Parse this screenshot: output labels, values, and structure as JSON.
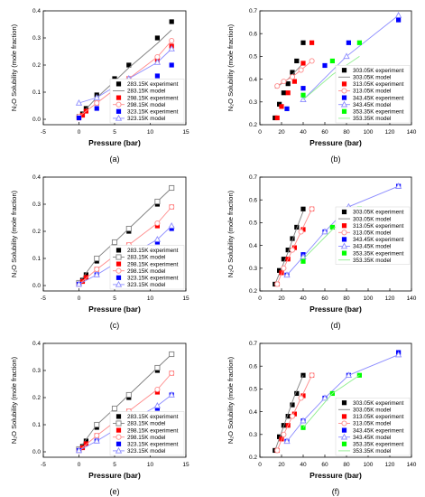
{
  "chart_data": [
    {
      "type": "line",
      "panel_label": "(a)",
      "xlabel": "Pressure (bar)",
      "ylabel": "N₂O Solubility (mole fraction)",
      "xlim": [
        -5,
        15
      ],
      "ylim": [
        -0.02,
        0.4
      ],
      "xticks": [
        "-5",
        "0",
        "5",
        "10",
        "15"
      ],
      "yticks": [
        "0.0",
        "0.1",
        "0.2",
        "0.3",
        "0.4"
      ],
      "legend_position": "bottom-right",
      "series": [
        {
          "name": "283.15K experiment",
          "color": "#000000",
          "marker": "square-filled",
          "line": false,
          "x": [
            0,
            0.5,
            1,
            2.5,
            5,
            7,
            11,
            13
          ],
          "y": [
            0.01,
            0.02,
            0.04,
            0.09,
            0.15,
            0.2,
            0.3,
            0.36
          ]
        },
        {
          "name": "283.15K model",
          "color": "#808080",
          "marker": "none",
          "line": true,
          "x": [
            0,
            2.5,
            5,
            7,
            11,
            13
          ],
          "y": [
            0.01,
            0.08,
            0.14,
            0.19,
            0.28,
            0.33
          ]
        },
        {
          "name": "298.15K experiment",
          "color": "#ff0000",
          "marker": "square-filled",
          "line": false,
          "x": [
            0,
            0.5,
            1,
            2.5,
            5,
            7,
            11,
            13
          ],
          "y": [
            0.005,
            0.015,
            0.03,
            0.06,
            0.1,
            0.15,
            0.22,
            0.27
          ]
        },
        {
          "name": "298.15K model",
          "color": "#ff8c8c",
          "marker": "circle-open",
          "line": true,
          "x": [
            0,
            2.5,
            5,
            7,
            11,
            13
          ],
          "y": [
            0.01,
            0.06,
            0.11,
            0.15,
            0.23,
            0.29
          ]
        },
        {
          "name": "323.15K experiment",
          "color": "#0000ff",
          "marker": "square-filled",
          "line": false,
          "x": [
            0,
            2.5,
            5,
            7,
            11,
            13
          ],
          "y": [
            0.005,
            0.04,
            0.07,
            0.1,
            0.16,
            0.2
          ]
        },
        {
          "name": "323.15K model",
          "color": "#8c8cff",
          "marker": "triangle-open",
          "line": true,
          "x": [
            0,
            2.5,
            5,
            7,
            11,
            13
          ],
          "y": [
            0.06,
            0.08,
            0.12,
            0.15,
            0.21,
            0.26
          ]
        }
      ]
    },
    {
      "type": "line",
      "panel_label": "(b)",
      "xlabel": "Pressure (bar)",
      "ylabel": "N₂O Solubility (mole fraction)",
      "xlim": [
        0,
        140
      ],
      "ylim": [
        0.2,
        0.7
      ],
      "xticks": [
        "0",
        "20",
        "40",
        "60",
        "80",
        "100",
        "120",
        "140"
      ],
      "yticks": [
        "0.2",
        "0.3",
        "0.4",
        "0.5",
        "0.6",
        "0.7"
      ],
      "legend_position": "bottom-right",
      "series": [
        {
          "name": "303.05K experiment",
          "color": "#000000",
          "marker": "square-filled",
          "line": false,
          "x": [
            14,
            18,
            22,
            26,
            30,
            34,
            40
          ],
          "y": [
            0.23,
            0.29,
            0.34,
            0.38,
            0.43,
            0.48,
            0.56
          ]
        },
        {
          "name": "303.05K model",
          "color": "#808080",
          "marker": "none",
          "line": true,
          "x": [
            14,
            20,
            26,
            32,
            40
          ],
          "y": [
            0.36,
            0.38,
            0.4,
            0.43,
            0.47
          ]
        },
        {
          "name": "313.05K experiment",
          "color": "#ff0000",
          "marker": "square-filled",
          "line": false,
          "x": [
            16,
            20,
            26,
            32,
            40,
            48
          ],
          "y": [
            0.23,
            0.28,
            0.34,
            0.39,
            0.47,
            0.56
          ]
        },
        {
          "name": "313.05K model",
          "color": "#ff8c8c",
          "marker": "circle-open",
          "line": true,
          "x": [
            16,
            22,
            30,
            38,
            48
          ],
          "y": [
            0.37,
            0.39,
            0.41,
            0.44,
            0.48
          ]
        },
        {
          "name": "343.45K experiment",
          "color": "#0000ff",
          "marker": "square-filled",
          "line": false,
          "x": [
            25,
            40,
            60,
            82,
            128
          ],
          "y": [
            0.27,
            0.36,
            0.46,
            0.56,
            0.66
          ]
        },
        {
          "name": "343.45K model",
          "color": "#8c8cff",
          "marker": "triangle-open",
          "line": true,
          "x": [
            40,
            80,
            128
          ],
          "y": [
            0.31,
            0.5,
            0.68
          ]
        },
        {
          "name": "353.35K experiment",
          "color": "#00ff00",
          "marker": "square-filled",
          "line": false,
          "x": [
            40,
            67,
            92
          ],
          "y": [
            0.33,
            0.48,
            0.56
          ]
        },
        {
          "name": "353.35K model",
          "color": "#90ee90",
          "marker": "none",
          "line": true,
          "x": [
            40,
            67,
            92
          ],
          "y": [
            0.31,
            0.42,
            0.5
          ]
        }
      ]
    },
    {
      "type": "line",
      "panel_label": "(c)",
      "xlabel": "Pressure (bar)",
      "ylabel": "N₂O Solubility (mole fraction)",
      "xlim": [
        -5,
        15
      ],
      "ylim": [
        -0.02,
        0.4
      ],
      "xticks": [
        "-5",
        "0",
        "5",
        "10",
        "15"
      ],
      "yticks": [
        "0.0",
        "0.1",
        "0.2",
        "0.3",
        "0.4"
      ],
      "legend_position": "bottom-right",
      "series": [
        {
          "name": "283.15K experiment",
          "color": "#000000",
          "marker": "square-filled",
          "line": false,
          "x": [
            0,
            0.5,
            1,
            2.5,
            5,
            7,
            11,
            13
          ],
          "y": [
            0.01,
            0.02,
            0.04,
            0.09,
            0.15,
            0.2,
            0.3,
            0.36
          ]
        },
        {
          "name": "283.15K model",
          "color": "#808080",
          "marker": "square-open",
          "line": true,
          "x": [
            0,
            2.5,
            5,
            7,
            11,
            13
          ],
          "y": [
            0.01,
            0.1,
            0.16,
            0.21,
            0.31,
            0.36
          ]
        },
        {
          "name": "298.15K experiment",
          "color": "#ff0000",
          "marker": "square-filled",
          "line": false,
          "x": [
            0,
            0.5,
            1,
            2.5,
            5,
            7,
            11,
            13
          ],
          "y": [
            0.005,
            0.015,
            0.03,
            0.06,
            0.1,
            0.15,
            0.22,
            0.29
          ]
        },
        {
          "name": "298.15K model",
          "color": "#ff8c8c",
          "marker": "circle-open",
          "line": true,
          "x": [
            0,
            2.5,
            5,
            7,
            11,
            13
          ],
          "y": [
            0.005,
            0.06,
            0.11,
            0.15,
            0.23,
            0.29
          ]
        },
        {
          "name": "323.15K experiment",
          "color": "#0000ff",
          "marker": "square-filled",
          "line": false,
          "x": [
            0,
            2.5,
            5,
            7,
            11,
            13
          ],
          "y": [
            0.005,
            0.04,
            0.07,
            0.1,
            0.16,
            0.21
          ]
        },
        {
          "name": "323.15K model",
          "color": "#8c8cff",
          "marker": "triangle-open",
          "line": true,
          "x": [
            0,
            2.5,
            5,
            7,
            11,
            13
          ],
          "y": [
            0.005,
            0.04,
            0.08,
            0.11,
            0.17,
            0.22
          ]
        }
      ]
    },
    {
      "type": "line",
      "panel_label": "(d)",
      "xlabel": "Pressure (bar)",
      "ylabel": "N₂O Solubility (mole fraction)",
      "xlim": [
        0,
        140
      ],
      "ylim": [
        0.2,
        0.7
      ],
      "xticks": [
        "0",
        "20",
        "40",
        "60",
        "80",
        "100",
        "120",
        "140"
      ],
      "yticks": [
        "0.2",
        "0.3",
        "0.4",
        "0.5",
        "0.6",
        "0.7"
      ],
      "legend_position": "top-right",
      "series": [
        {
          "name": "303.05K experiment",
          "color": "#000000",
          "marker": "square-filled",
          "line": false,
          "x": [
            14,
            18,
            22,
            26,
            30,
            34,
            40
          ],
          "y": [
            0.23,
            0.29,
            0.34,
            0.38,
            0.43,
            0.48,
            0.56
          ]
        },
        {
          "name": "303.05K model",
          "color": "#808080",
          "marker": "none",
          "line": true,
          "x": [
            14,
            20,
            26,
            32,
            40
          ],
          "y": [
            0.23,
            0.3,
            0.37,
            0.45,
            0.55
          ]
        },
        {
          "name": "313.05K experiment",
          "color": "#ff0000",
          "marker": "square-filled",
          "line": false,
          "x": [
            16,
            20,
            26,
            32,
            40,
            48
          ],
          "y": [
            0.23,
            0.28,
            0.34,
            0.39,
            0.47,
            0.56
          ]
        },
        {
          "name": "313.05K model",
          "color": "#ff8c8c",
          "marker": "circle-open",
          "line": true,
          "x": [
            16,
            22,
            30,
            38,
            48
          ],
          "y": [
            0.23,
            0.3,
            0.38,
            0.46,
            0.56
          ]
        },
        {
          "name": "343.45K experiment",
          "color": "#0000ff",
          "marker": "square-filled",
          "line": false,
          "x": [
            25,
            40,
            60,
            82,
            128
          ],
          "y": [
            0.27,
            0.36,
            0.46,
            0.56,
            0.66
          ]
        },
        {
          "name": "343.45K model",
          "color": "#8c8cff",
          "marker": "triangle-open",
          "line": true,
          "x": [
            25,
            40,
            60,
            82,
            128
          ],
          "y": [
            0.27,
            0.35,
            0.46,
            0.57,
            0.66
          ]
        },
        {
          "name": "353.35K experiment",
          "color": "#00ff00",
          "marker": "square-filled",
          "line": false,
          "x": [
            40,
            67,
            92
          ],
          "y": [
            0.33,
            0.48,
            0.56
          ]
        },
        {
          "name": "353.35K model",
          "color": "#90ee90",
          "marker": "none",
          "line": true,
          "x": [
            40,
            67,
            92
          ],
          "y": [
            0.34,
            0.47,
            0.57
          ]
        }
      ]
    },
    {
      "type": "line",
      "panel_label": "(e)",
      "xlabel": "Pressure (bar)",
      "ylabel": "N₂O Solubility (mole fraction)",
      "xlim": [
        -5,
        15
      ],
      "ylim": [
        -0.02,
        0.4
      ],
      "xticks": [
        "-5",
        "0",
        "5",
        "10",
        "15"
      ],
      "yticks": [
        "0.0",
        "0.1",
        "0.2",
        "0.3",
        "0.4"
      ],
      "legend_position": "bottom-right",
      "series": [
        {
          "name": "283.15K experiment",
          "color": "#000000",
          "marker": "square-filled",
          "line": false,
          "x": [
            0,
            0.5,
            1,
            2.5,
            5,
            7,
            11,
            13
          ],
          "y": [
            0.01,
            0.02,
            0.04,
            0.09,
            0.15,
            0.2,
            0.3,
            0.36
          ]
        },
        {
          "name": "283.15K model",
          "color": "#808080",
          "marker": "square-open",
          "line": true,
          "x": [
            0,
            2.5,
            5,
            7,
            11,
            13
          ],
          "y": [
            0.01,
            0.1,
            0.16,
            0.21,
            0.31,
            0.36
          ]
        },
        {
          "name": "298.15K experiment",
          "color": "#ff0000",
          "marker": "square-filled",
          "line": false,
          "x": [
            0,
            0.5,
            1,
            2.5,
            5,
            7,
            11,
            13
          ],
          "y": [
            0.005,
            0.015,
            0.03,
            0.06,
            0.1,
            0.15,
            0.22,
            0.29
          ]
        },
        {
          "name": "298.15K model",
          "color": "#ff8c8c",
          "marker": "circle-open",
          "line": true,
          "x": [
            0,
            2.5,
            5,
            7,
            11,
            13
          ],
          "y": [
            0.005,
            0.06,
            0.11,
            0.15,
            0.23,
            0.29
          ]
        },
        {
          "name": "323.15K experiment",
          "color": "#0000ff",
          "marker": "square-filled",
          "line": false,
          "x": [
            0,
            2.5,
            5,
            7,
            11,
            13
          ],
          "y": [
            0.005,
            0.04,
            0.07,
            0.1,
            0.16,
            0.21
          ]
        },
        {
          "name": "323.15K model",
          "color": "#8c8cff",
          "marker": "triangle-open",
          "line": true,
          "x": [
            0,
            2.5,
            5,
            7,
            11,
            13
          ],
          "y": [
            0.005,
            0.04,
            0.08,
            0.11,
            0.17,
            0.21
          ]
        }
      ]
    },
    {
      "type": "line",
      "panel_label": "(f)",
      "xlabel": "Pressure (bar)",
      "ylabel": "N₂O Solubility (mole fraction)",
      "xlim": [
        0,
        140
      ],
      "ylim": [
        0.2,
        0.7
      ],
      "xticks": [
        "0",
        "20",
        "40",
        "60",
        "80",
        "100",
        "120",
        "140"
      ],
      "yticks": [
        "0.2",
        "0.3",
        "0.4",
        "0.5",
        "0.6",
        "0.7"
      ],
      "legend_position": "bottom-right",
      "series": [
        {
          "name": "303.05K experiment",
          "color": "#000000",
          "marker": "square-filled",
          "line": false,
          "x": [
            14,
            18,
            22,
            26,
            30,
            34,
            40
          ],
          "y": [
            0.23,
            0.29,
            0.34,
            0.38,
            0.43,
            0.48,
            0.56
          ]
        },
        {
          "name": "303.05K model",
          "color": "#808080",
          "marker": "none",
          "line": true,
          "x": [
            14,
            20,
            26,
            32,
            40
          ],
          "y": [
            0.23,
            0.31,
            0.39,
            0.47,
            0.56
          ]
        },
        {
          "name": "313.05K experiment",
          "color": "#ff0000",
          "marker": "square-filled",
          "line": false,
          "x": [
            16,
            20,
            26,
            32,
            40,
            48
          ],
          "y": [
            0.23,
            0.28,
            0.34,
            0.39,
            0.47,
            0.56
          ]
        },
        {
          "name": "313.05K model",
          "color": "#ff8c8c",
          "marker": "circle-open",
          "line": true,
          "x": [
            16,
            22,
            30,
            38,
            48
          ],
          "y": [
            0.23,
            0.3,
            0.38,
            0.46,
            0.56
          ]
        },
        {
          "name": "343.45K experiment",
          "color": "#0000ff",
          "marker": "square-filled",
          "line": false,
          "x": [
            25,
            40,
            60,
            82,
            128
          ],
          "y": [
            0.27,
            0.36,
            0.46,
            0.56,
            0.66
          ]
        },
        {
          "name": "343.45K model",
          "color": "#8c8cff",
          "marker": "triangle-open",
          "line": true,
          "x": [
            25,
            40,
            60,
            82,
            128
          ],
          "y": [
            0.27,
            0.36,
            0.46,
            0.56,
            0.65
          ]
        },
        {
          "name": "353.35K experiment",
          "color": "#00ff00",
          "marker": "square-filled",
          "line": false,
          "x": [
            40,
            67,
            92
          ],
          "y": [
            0.33,
            0.48,
            0.56
          ]
        },
        {
          "name": "353.35K model",
          "color": "#90ee90",
          "marker": "none",
          "line": true,
          "x": [
            40,
            67,
            92
          ],
          "y": [
            0.33,
            0.48,
            0.56
          ]
        }
      ]
    }
  ]
}
